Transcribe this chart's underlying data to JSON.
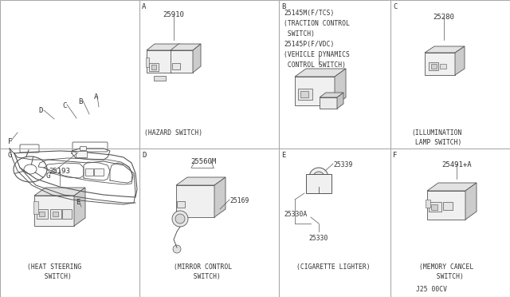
{
  "bg_color": "#e8e8e8",
  "line_color": "#555555",
  "border_color": "#aaaaaa",
  "text_color": "#333333",
  "white": "#ffffff",
  "part_labels": {
    "A_part": "25910",
    "A_caption": "(HAZARD SWITCH)",
    "B_part1": "25145M(F/TCS)",
    "B_part2": "(TRACTION CONTROL",
    "B_part3": " SWITCH)",
    "B_part4": "25145P(F/VDC)",
    "B_part5": "(VEHICLE DYNAMICS",
    "B_part6": " CONTROL SWITCH)",
    "C_part": "25280",
    "C_caption1": "(ILLUMINATION",
    "C_caption2": " LAMP SWITCH)",
    "G_part": "25193",
    "G_caption1": "(HEAT STEERING",
    "G_caption2": "  SWITCH)",
    "D_part1": "25560M",
    "D_part2": "25169",
    "D_caption1": "(MIRROR CONTROL",
    "D_caption2": "  SWITCH)",
    "E_part1": "25339",
    "E_part2": "25330A",
    "E_part3": "25330",
    "E_caption": "(CIGARETTE LIGHTER)",
    "F_part": "25491+A",
    "F_caption1": "(MEMORY CANCEL",
    "F_caption2": "  SWITCH)",
    "footnote": "J25 00CV"
  }
}
